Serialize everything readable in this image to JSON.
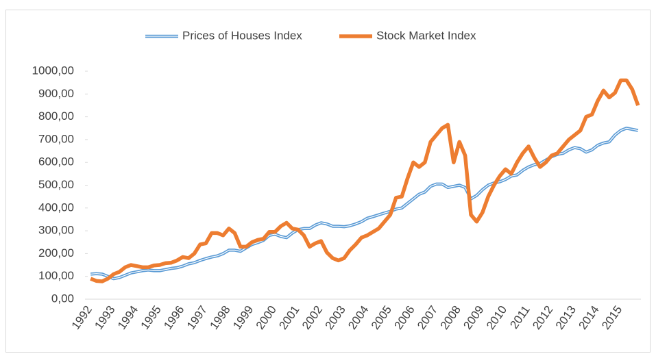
{
  "chart_data": {
    "type": "line",
    "categories": [
      "1992",
      null,
      null,
      null,
      "1993",
      null,
      null,
      null,
      "1994",
      null,
      null,
      null,
      "1995",
      null,
      null,
      null,
      "1996",
      null,
      null,
      null,
      "1997",
      null,
      null,
      null,
      "1998",
      null,
      null,
      null,
      "1999",
      null,
      null,
      null,
      "2000",
      null,
      null,
      null,
      "2001",
      null,
      null,
      null,
      "2002",
      null,
      null,
      null,
      "2003",
      null,
      null,
      null,
      "2004",
      null,
      null,
      null,
      "2005",
      null,
      null,
      null,
      "2006",
      null,
      null,
      null,
      "2007",
      null,
      null,
      null,
      "2008",
      null,
      null,
      null,
      "2009",
      null,
      null,
      null,
      "2010",
      null,
      null,
      null,
      "2011",
      null,
      null,
      null,
      "2012",
      null,
      null,
      null,
      "2013",
      null,
      null,
      null,
      "2014",
      null,
      null,
      null,
      "2015",
      null,
      null,
      null
    ],
    "series": [
      {
        "name": "Prices of Houses Index",
        "color": "#5b9bd5",
        "values": [
          110,
          112,
          110,
          100,
          90,
          95,
          105,
          115,
          120,
          125,
          128,
          125,
          125,
          130,
          135,
          138,
          145,
          155,
          160,
          170,
          178,
          185,
          190,
          200,
          215,
          215,
          210,
          225,
          240,
          248,
          258,
          280,
          285,
          275,
          270,
          290,
          305,
          310,
          310,
          325,
          335,
          330,
          320,
          320,
          318,
          322,
          330,
          340,
          355,
          362,
          370,
          378,
          385,
          395,
          400,
          420,
          440,
          460,
          470,
          495,
          505,
          505,
          490,
          495,
          500,
          490,
          440,
          455,
          480,
          500,
          510,
          515,
          525,
          540,
          545,
          565,
          580,
          590,
          595,
          610,
          625,
          635,
          640,
          655,
          665,
          660,
          645,
          655,
          675,
          685,
          690,
          720,
          740,
          750,
          745,
          740
        ]
      },
      {
        "name": "Stock Market Index",
        "color": "#ed7d31",
        "values": [
          90,
          80,
          78,
          90,
          110,
          120,
          140,
          150,
          145,
          140,
          140,
          148,
          150,
          158,
          160,
          170,
          185,
          180,
          200,
          240,
          245,
          290,
          290,
          280,
          310,
          290,
          230,
          230,
          250,
          260,
          265,
          295,
          295,
          320,
          335,
          310,
          305,
          280,
          230,
          245,
          255,
          205,
          180,
          170,
          180,
          215,
          240,
          270,
          280,
          295,
          310,
          340,
          370,
          445,
          450,
          530,
          600,
          580,
          600,
          690,
          720,
          750,
          765,
          600,
          690,
          630,
          370,
          340,
          380,
          450,
          500,
          540,
          570,
          550,
          600,
          640,
          670,
          620,
          580,
          600,
          630,
          640,
          670,
          700,
          720,
          740,
          800,
          810,
          870,
          915,
          885,
          905,
          960,
          960,
          920,
          850
        ]
      }
    ],
    "ylim": [
      0,
      1000
    ],
    "yticks": [
      {
        "value": 0,
        "label": "0,00"
      },
      {
        "value": 100,
        "label": "100,00"
      },
      {
        "value": 200,
        "label": "200,00"
      },
      {
        "value": 300,
        "label": "300,00"
      },
      {
        "value": 400,
        "label": "400,00"
      },
      {
        "value": 500,
        "label": "500,00"
      },
      {
        "value": 600,
        "label": "600,00"
      },
      {
        "value": 700,
        "label": "700,00"
      },
      {
        "value": 800,
        "label": "800,00"
      },
      {
        "value": 900,
        "label": "900,00"
      },
      {
        "value": 1000,
        "label": "1000,00"
      }
    ],
    "legend": "top"
  }
}
